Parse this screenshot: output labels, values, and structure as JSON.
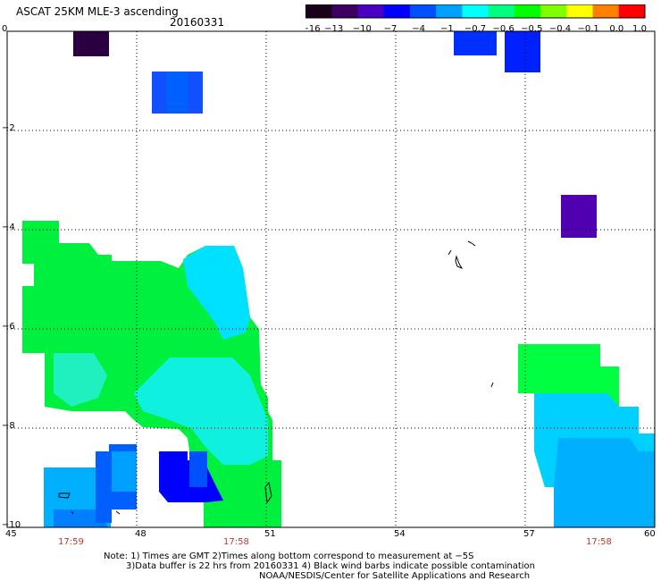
{
  "header": {
    "title": "ASCAT 25KM MLE-3 ascending",
    "date": "20160331"
  },
  "colorbar": {
    "labels": [
      "−16",
      "−13",
      "−10",
      "−7",
      "−4",
      "−1",
      "−0.7",
      "−0.6",
      "−0.5",
      "−0.4",
      "−0.1",
      "0.0",
      "1.0"
    ],
    "colors": [
      "#1a001a",
      "#3b0060",
      "#4a00c0",
      "#0000ff",
      "#0050ff",
      "#00a0ff",
      "#00ffff",
      "#00ff80",
      "#00ff00",
      "#80ff00",
      "#ffff00",
      "#ff8000",
      "#ff0000"
    ]
  },
  "axes": {
    "x_ticks": [
      "45",
      "48",
      "51",
      "54",
      "57",
      "60"
    ],
    "y_ticks": [
      "0",
      "−2",
      "−4",
      "−6",
      "−8",
      "−10"
    ],
    "times": [
      "17:59",
      "17:58",
      "17:58"
    ]
  },
  "notes": {
    "line1": "Note: 1) Times are GMT 2)Times along bottom correspond to measurement at −5S",
    "line2": "3)Data buffer is 22 hrs from 20160331 4) Black wind barbs indicate possible contamination",
    "line3": "NOAA/NESDIS/Center for Satellite Applications and Research"
  }
}
